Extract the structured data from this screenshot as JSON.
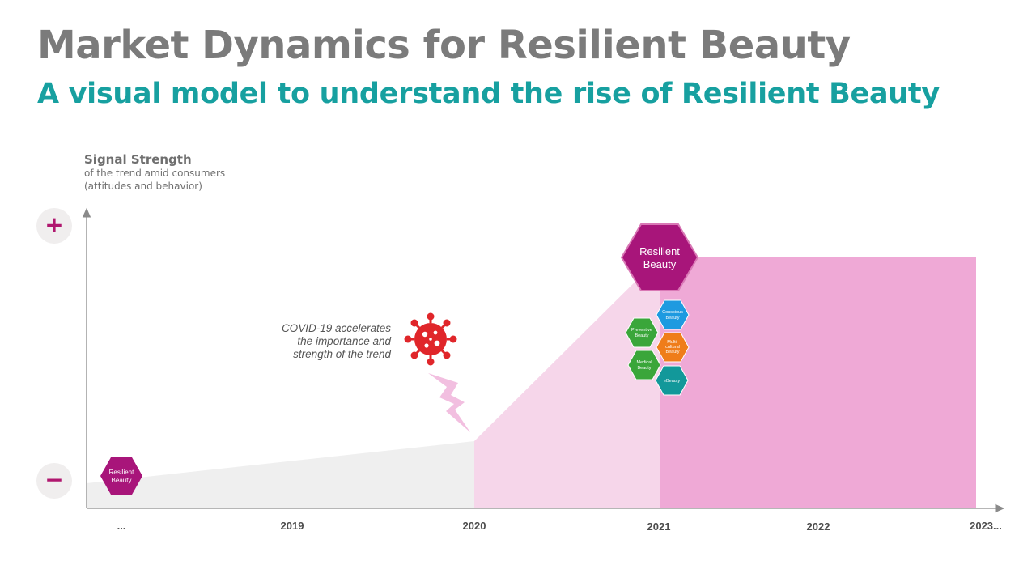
{
  "title": "Market Dynamics for Resilient Beauty",
  "subtitle": "A visual model to understand the rise of Resilient Beauty",
  "y_axis": {
    "title": "Signal Strength",
    "line1": "of the trend amid consumers",
    "line2": "(attitudes and behavior)",
    "plus": "+",
    "minus": "−"
  },
  "x_axis": {
    "ticks": [
      "...",
      "2019",
      "2020",
      "2021",
      "2022",
      "2023..."
    ]
  },
  "annotation": {
    "line1": "COVID-19 accelerates",
    "line2": "the importance and",
    "line3": "strength of the trend"
  },
  "hexagons": {
    "small": {
      "line1": "Resilient",
      "line2": "Beauty",
      "color": "#a8157a"
    },
    "large": {
      "line1": "Resilient",
      "line2": "Beauty",
      "color": "#a8157a"
    },
    "conscious": {
      "line1": "Conscious",
      "line2": "Beauty",
      "color": "#1e9ae0"
    },
    "preventive": {
      "line1": "Preventive",
      "line2": "Beauty",
      "color": "#3aa63a"
    },
    "multicultural": {
      "line1": "Multi-",
      "line2": "cultural",
      "line3": "Beauty",
      "color": "#ef7d1a"
    },
    "medical": {
      "line1": "Medical",
      "line2": "Beauty",
      "color": "#3aa63a"
    },
    "ebeauty": {
      "line1": "eBeauty",
      "color": "#12989a"
    }
  },
  "colors": {
    "gray_area": "#efefef",
    "light_pink_area": "#f6d6ea",
    "pink_area": "#efa9d6",
    "virus": "#e0262a",
    "lightning": "#f2bfe0",
    "axis": "#8a8a8a"
  }
}
